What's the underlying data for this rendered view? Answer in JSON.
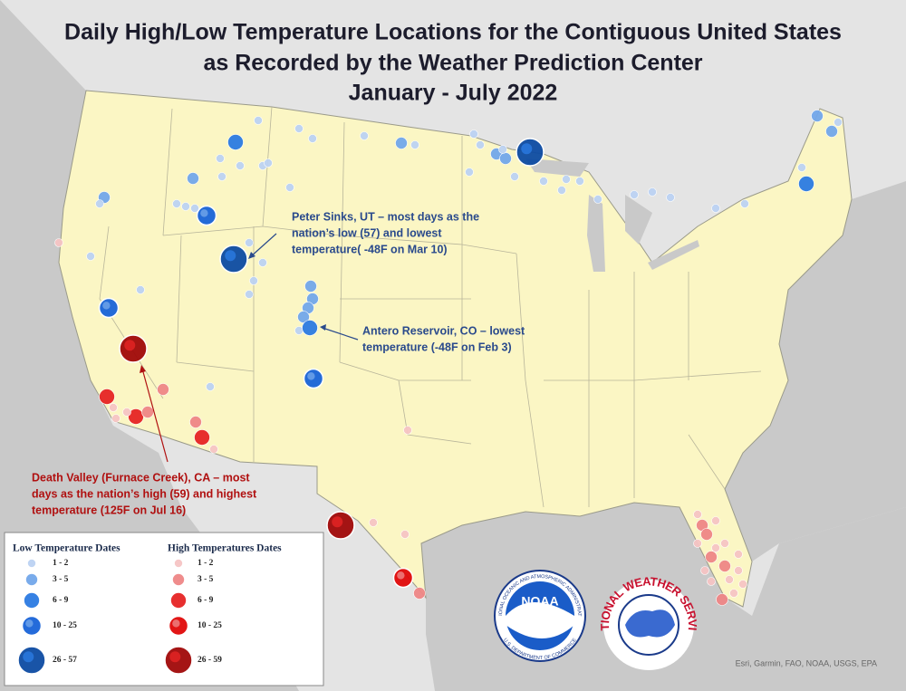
{
  "title_lines": [
    "Daily High/Low Temperature Locations for the Contiguous United States",
    "as Recorded by the Weather Prediction Center",
    "January - July 2022"
  ],
  "annotations": {
    "peter_sinks": [
      "Peter Sinks, UT – most days as the",
      "nation’s low (57) and lowest",
      "temperature( -48F on Mar 10)"
    ],
    "antero": [
      "Antero Reservoir, CO – lowest",
      "temperature (-48F on Feb 3)"
    ],
    "death_valley": [
      "Death Valley (Furnace Creek), CA – most",
      "days as the nation’s high (59) and highest",
      "temperature (125F on Jul 16)"
    ]
  },
  "legend": {
    "low_title": "Low Temperature Dates",
    "low_labels": [
      "1 - 2",
      "3 - 5",
      "6 - 9",
      "10 - 25",
      "26 - 57"
    ],
    "high_title": "High Temperatures Dates",
    "high_labels": [
      "1 - 2",
      "3 - 5",
      "6 - 9",
      "10 - 25",
      "26 - 59"
    ]
  },
  "logos": {
    "noaa": "NOAA",
    "noaa_ring_top": "NATIONAL OCEANIC AND ATMOSPHERIC ADMINISTRATION",
    "noaa_ring_bottom": "U.S. DEPARTMENT OF COMMERCE",
    "nws": "NATIONAL WEATHER SERVICE"
  },
  "attribution": "Esri, Garmin, FAO, NOAA, USGS, EPA"
}
